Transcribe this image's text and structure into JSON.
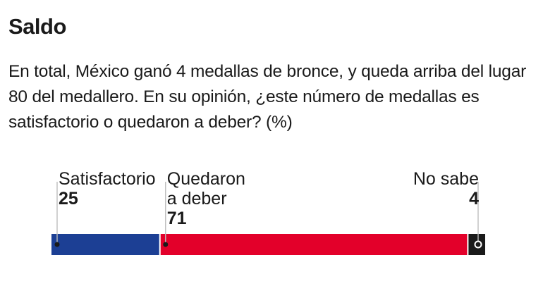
{
  "header": {
    "title": "Saldo",
    "question": "En total, México ganó 4 medallas de bronce, y queda arriba del lugar 80 del medallero. En su opinión, ¿este número de medallas es satisfactorio o quedaron a deber? (%)"
  },
  "chart_data": {
    "type": "bar",
    "orientation": "horizontal-stacked",
    "unit": "%",
    "categories": [
      "Satisfactorio",
      "Quedaron a deber",
      "No sabe"
    ],
    "label_lines": [
      [
        "Satisfactorio"
      ],
      [
        "Quedaron",
        "a deber"
      ],
      [
        "No sabe"
      ]
    ],
    "values": [
      25,
      71,
      4
    ],
    "colors": [
      "#1c3f94",
      "#e3002a",
      "#1a1a1a"
    ],
    "label_align": [
      "start",
      "start",
      "end"
    ],
    "xlim": [
      0,
      100
    ],
    "grid": false,
    "legend": "none"
  }
}
